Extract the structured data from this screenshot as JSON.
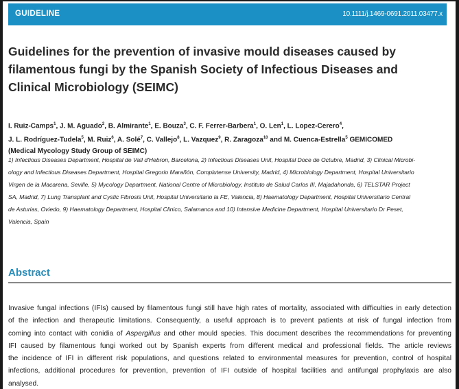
{
  "header": {
    "label": "GUIDELINE",
    "doi": "10.1111/j.1469-0691.2011.03477.x",
    "bar_color": "#1b90c4"
  },
  "title_lines": [
    "Guidelines for the prevention of invasive mould diseases caused by",
    "filamentous fungi by the Spanish Society of  Infectious Diseases and",
    "Clinical Microbiology (SEIMC)"
  ],
  "authors": {
    "line1": [
      {
        "name": "I. Ruiz-Camps",
        "sup": "1"
      },
      {
        "name": ", J. M. Aguado",
        "sup": "2"
      },
      {
        "name": ", B. Almirante",
        "sup": "1"
      },
      {
        "name": ", E. Bouza",
        "sup": "3"
      },
      {
        "name": ", C. F. Ferrer-Barbera",
        "sup": "1"
      },
      {
        "name": ", O. Len",
        "sup": "1"
      },
      {
        "name": ", L. Lopez-Cerero",
        "sup": "4"
      },
      {
        "name": ",",
        "sup": ""
      }
    ],
    "line2": [
      {
        "name": "J. L. Rodríguez-Tudela",
        "sup": "5"
      },
      {
        "name": ", M. Ruiz",
        "sup": "6"
      },
      {
        "name": ", A. Solé",
        "sup": "7"
      },
      {
        "name": ", C. Vallejo",
        "sup": "8"
      },
      {
        "name": ", L. Vazquez",
        "sup": "9"
      },
      {
        "name": ", R. Zaragoza",
        "sup": "10"
      },
      {
        "name": " and M. Cuenca-Estrella",
        "sup": "5"
      },
      {
        "name": " GEMICOMED",
        "sup": ""
      }
    ],
    "line3": "(Medical Mycology Study Group of SEIMC)"
  },
  "affiliation_lines": [
    "1) Infectious Diseases Department, Hospital de Vall d'Hebron, Barcelona, 2) Infectious Diseases Unit, Hospital Doce de Octubre, Madrid, 3) Clinical Microbi-",
    "ology and Infectious Diseases Department, Hospital Gregorio Marañón, Complutense University, Madrid, 4) Microbiology Department, Hospital Universitario",
    "Virgen de la Macarena, Seville, 5) Mycology Department, National Centre of Microbiology, Instituto de Salud Carlos III, Majadahonda, 6) TELSTAR Project",
    "SA, Madrid, 7) Lung Transplant and Cystic Fibrosis Unit, Hospital Universitario la FE, Valencia, 8) Haematology Department, Hospital Universitario Central",
    "de Asturias, Oviedo, 9) Haematology Department, Hospital Clinico, Salamanca and 10) Intensive Medicine Department, Hospital Universitario Dr Peset,",
    "Valencia, Spain"
  ],
  "abstract": {
    "heading": "Abstract",
    "heading_color": "#2b8cb8",
    "lines": [
      "Invasive fungal infections (IFIs) caused by filamentous fungi still have high rates of mortality, associated with difficulties in early detection",
      "of the infection and therapeutic limitations. Consequently, a useful approach is to prevent patients at risk of fungal infection from",
      "coming into contact with conidia of ",
      "IFI caused by filamentous fungi worked out by Spanish experts from different medical and professional fields. The article reviews",
      "the incidence of IFI in different risk populations, and questions related to environmental measures for prevention, control of hospital",
      "infections, additional procedures for prevention, prevention of IFI outside of hospital facilities and antifungal prophylaxis are also",
      "analysed."
    ],
    "line3_italic": "Aspergillus",
    "line3_rest": " and other mould species. This document describes the recommendations for preventing"
  }
}
